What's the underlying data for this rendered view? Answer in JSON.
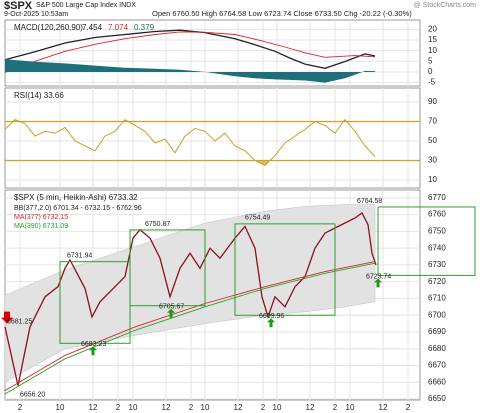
{
  "header": {
    "symbol": "$SPX",
    "name": "S&P 500 Large Cap Index INDX",
    "date": "9-Oct-2025 10:53am",
    "quote": "Open 6760.50 High 6764.58 Low 6723.74 Close 6733.50 Chg -20.22 (-0.30%)",
    "source": "@ StockCharts.com"
  },
  "chart_data": [
    {
      "type": "line",
      "title": "MACD(120,260,90)",
      "xlim": [
        0,
        415
      ],
      "ylim": [
        -6.6,
        24.4
      ],
      "yticks": [
        20,
        15,
        10,
        5,
        0,
        -5
      ],
      "series": [
        {
          "name": "7.454",
          "color": "#222222",
          "x": [
            0,
            30,
            60,
            90,
            120,
            150,
            175,
            200,
            230,
            250,
            270,
            285,
            300,
            320,
            340,
            360,
            370
          ],
          "values": [
            5.7,
            9.5,
            13.6,
            16.2,
            17.6,
            19,
            19.6,
            18.5,
            15.6,
            12.8,
            9.7,
            6.5,
            3.7,
            1.7,
            4.9,
            8.5,
            7.5
          ]
        },
        {
          "name": "7.074",
          "color": "#d62728",
          "x": [
            0,
            30,
            60,
            90,
            120,
            150,
            175,
            200,
            230,
            255,
            280,
            300,
            320,
            350,
            370
          ],
          "values": [
            -0.2,
            5,
            9.7,
            13,
            15.6,
            17.6,
            18.8,
            18.6,
            17.6,
            14.8,
            11.7,
            9,
            6.9,
            7.7,
            7.1
          ]
        },
        {
          "name": "0.379",
          "color": "#1f6f7a",
          "style": "area",
          "x": [
            0,
            30,
            60,
            90,
            120,
            150,
            175,
            200,
            215,
            230,
            250,
            270,
            300,
            320,
            340,
            355,
            360,
            370
          ],
          "values": [
            6,
            4.8,
            4,
            3,
            2,
            1.5,
            1,
            0,
            -1,
            -2,
            -3,
            -3.5,
            -4,
            -5,
            -3,
            -0.5,
            0.5,
            0.4
          ]
        }
      ]
    },
    {
      "type": "line",
      "title": "RSI(14) 33.66",
      "xlim": [
        0,
        415
      ],
      "ylim": [
        1.8,
        104.4
      ],
      "yticks": [
        90,
        70,
        50,
        30,
        10
      ],
      "overbought": 70,
      "oversold": 30,
      "color": "#c9a227",
      "x": [
        0,
        10,
        20,
        30,
        40,
        50,
        60,
        70,
        80,
        90,
        100,
        110,
        120,
        130,
        140,
        150,
        160,
        170,
        180,
        190,
        200,
        210,
        220,
        230,
        240,
        250,
        260,
        270,
        280,
        290,
        300,
        310,
        320,
        330,
        340,
        350,
        360,
        370
      ],
      "values": [
        62,
        72,
        68,
        55,
        60,
        58,
        64,
        50,
        45,
        40,
        55,
        60,
        72,
        66,
        60,
        48,
        52,
        38,
        55,
        63,
        60,
        50,
        58,
        45,
        40,
        30,
        25,
        35,
        48,
        55,
        62,
        70,
        66,
        58,
        72,
        60,
        45,
        34
      ]
    },
    {
      "type": "line",
      "title": "$SPX (5 min, Heikin-Ashi) 6733.32",
      "xlim": [
        0,
        415
      ],
      "ylim": [
        6649.4,
        6774.7
      ],
      "yticks": [
        6770,
        6760,
        6750,
        6740,
        6730,
        6720,
        6710,
        6700,
        6690,
        6680,
        6670,
        6660,
        6650
      ],
      "xticks": [
        {
          "value": 15,
          "label": "2"
        },
        {
          "value": 55,
          "label": "10"
        },
        {
          "value": 88,
          "label": "12"
        },
        {
          "value": 113,
          "label": "2"
        },
        {
          "value": 128,
          "label": "10"
        },
        {
          "value": 161,
          "label": "12"
        },
        {
          "value": 186,
          "label": "2"
        },
        {
          "value": 200,
          "label": "10"
        },
        {
          "value": 233,
          "label": "12"
        },
        {
          "value": 258,
          "label": "2"
        },
        {
          "value": 272,
          "label": "10"
        },
        {
          "value": 305,
          "label": "12"
        },
        {
          "value": 330,
          "label": "2"
        },
        {
          "value": 345,
          "label": "10"
        },
        {
          "value": 378,
          "label": "12"
        },
        {
          "value": 403,
          "label": "2"
        }
      ],
      "band": {
        "name": "BB(377,2.0) 6701.34 - 6732.15 - 6762.96",
        "color": "#e2e2e2",
        "x": [
          0,
          60,
          130,
          200,
          260,
          300,
          340,
          370
        ],
        "upper": [
          6712,
          6727,
          6741,
          6755,
          6762,
          6765,
          6766,
          6766
        ],
        "lower": [
          6660,
          6680,
          6688,
          6695,
          6700,
          6702,
          6705,
          6708
        ]
      },
      "series": [
        {
          "color": "#8b1020",
          "x": [
            0,
            13,
            25,
            40,
            53,
            60,
            65,
            80,
            87,
            95,
            110,
            120,
            128,
            135,
            145,
            155,
            165,
            175,
            185,
            195,
            205,
            215,
            230,
            240,
            250,
            257,
            263,
            270,
            280,
            290,
            300,
            310,
            320,
            330,
            340,
            350,
            357,
            363,
            367,
            371
          ],
          "values": [
            6693,
            6658,
            6693,
            6711,
            6717,
            6728,
            6733,
            6716,
            6699,
            6708,
            6717,
            6723,
            6746,
            6751,
            6746,
            6734,
            6711,
            6728,
            6737,
            6728,
            6740,
            6734,
            6746,
            6753,
            6740,
            6711,
            6699,
            6711,
            6705,
            6717,
            6723,
            6740,
            6749,
            6752,
            6755,
            6758,
            6761,
            6754,
            6737,
            6730
          ]
        },
        {
          "name": "MA(377) 6732.15",
          "color": "#d62728",
          "x": [
            0,
            60,
            130,
            200,
            260,
            320,
            370
          ],
          "values": [
            6655,
            6676,
            6693,
            6707,
            6717,
            6726,
            6732
          ]
        },
        {
          "name": "MA(390) 6731.09",
          "color": "#2ca02c",
          "x": [
            0,
            60,
            130,
            200,
            260,
            320,
            370
          ],
          "values": [
            6653,
            6674,
            6691,
            6705,
            6716,
            6725,
            6731
          ]
        }
      ],
      "boxes": [
        {
          "x": [
            55,
            125
          ],
          "high": 6731.94,
          "low": 6683.23,
          "high_x": 62,
          "low_x": 80
        },
        {
          "x": [
            125,
            200
          ],
          "high": 6750.87,
          "low": 6705.67,
          "high_x": 140,
          "low_x": 158
        },
        {
          "x": [
            230,
            330
          ],
          "high": 6754.49,
          "low": 6699.96,
          "high_x": 240,
          "low_x": 258
        },
        {
          "x": [
            373,
            470
          ],
          "high": 6764.58,
          "low": 6723.74,
          "high_x": 352,
          "low_x": 365
        }
      ],
      "annotations": [
        {
          "x": 0,
          "value": 6681.25
        },
        {
          "x": 13,
          "value": 6656.2,
          "label": "6656.20"
        }
      ]
    }
  ]
}
